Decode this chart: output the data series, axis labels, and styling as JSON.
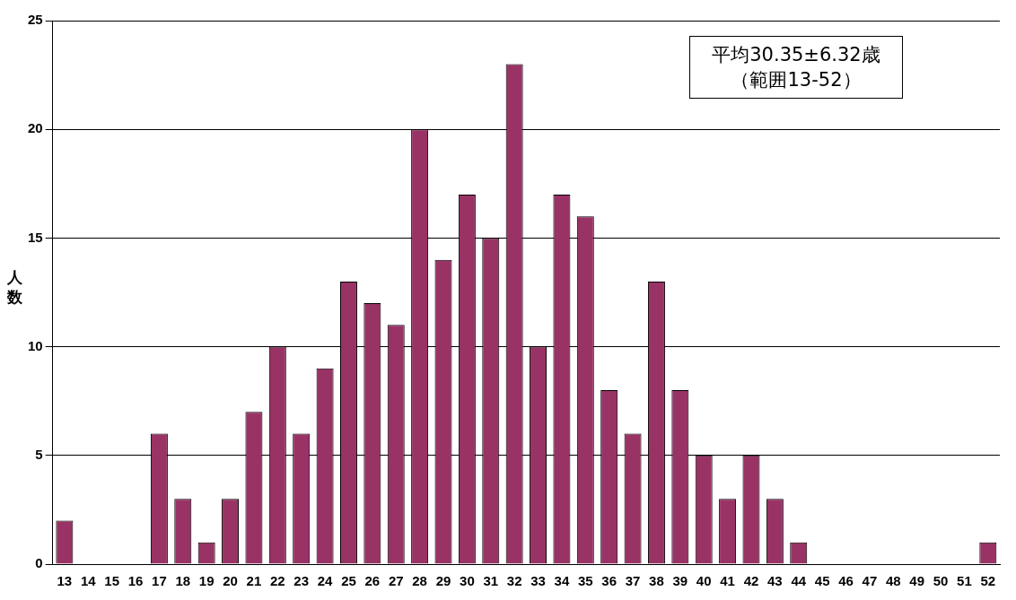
{
  "chart_data": {
    "type": "bar",
    "ylabel": "人数",
    "categories": [
      "13",
      "14",
      "15",
      "16",
      "17",
      "18",
      "19",
      "20",
      "21",
      "22",
      "23",
      "24",
      "25",
      "26",
      "27",
      "28",
      "29",
      "30",
      "31",
      "32",
      "33",
      "34",
      "35",
      "36",
      "37",
      "38",
      "39",
      "40",
      "41",
      "42",
      "43",
      "44",
      "45",
      "46",
      "47",
      "48",
      "49",
      "50",
      "51",
      "52"
    ],
    "values": [
      2,
      0,
      0,
      0,
      6,
      3,
      1,
      3,
      7,
      10,
      6,
      9,
      13,
      12,
      11,
      20,
      14,
      17,
      15,
      23,
      10,
      17,
      16,
      8,
      6,
      13,
      8,
      5,
      3,
      5,
      3,
      1,
      0,
      0,
      0,
      0,
      0,
      0,
      0,
      1
    ],
    "color": "#993366",
    "ylim": [
      0,
      25
    ],
    "yticks": [
      0,
      5,
      10,
      15,
      20,
      25
    ],
    "grid": "y",
    "legend": false,
    "annotations": [
      "平均30.35±6.32歳",
      "（範囲13-52）"
    ]
  }
}
